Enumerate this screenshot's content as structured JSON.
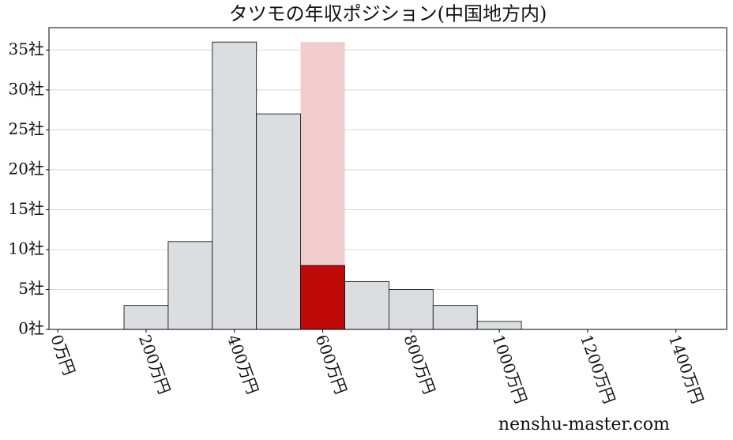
{
  "chart_data": {
    "type": "histogram",
    "title": "タツモの年収ポジション(中国地方内)",
    "bins": [
      150,
      250,
      350,
      450,
      550,
      650,
      750,
      850,
      950,
      1050
    ],
    "values": [
      3,
      11,
      36,
      27,
      8,
      6,
      5,
      3,
      1
    ],
    "color": "#dcdde0",
    "edgecolor": "#000000",
    "highlight": {
      "bins": [
        550,
        650
      ],
      "value": 36,
      "color": "#f0cccc",
      "bar_color": "#c00a0a"
    },
    "xlim": [
      -20,
      1515
    ],
    "ylim": [
      0,
      37.8
    ],
    "xticks": [
      {
        "value": 0,
        "label": "0万円"
      },
      {
        "value": 200,
        "label": "200万円"
      },
      {
        "value": 400,
        "label": "400万円"
      },
      {
        "value": 600,
        "label": "600万円"
      },
      {
        "value": 800,
        "label": "800万円"
      },
      {
        "value": 1000,
        "label": "1000万円"
      },
      {
        "value": 1200,
        "label": "1200万円"
      },
      {
        "value": 1400,
        "label": "1400万円"
      }
    ],
    "yticks": [
      {
        "value": 0,
        "label": "0社"
      },
      {
        "value": 5,
        "label": "5社"
      },
      {
        "value": 10,
        "label": "10社"
      },
      {
        "value": 15,
        "label": "15社"
      },
      {
        "value": 20,
        "label": "20社"
      },
      {
        "value": 25,
        "label": "25社"
      },
      {
        "value": 30,
        "label": "30社"
      },
      {
        "value": 35,
        "label": "35社"
      }
    ],
    "grid": true,
    "watermark": "nenshu-master.com"
  }
}
